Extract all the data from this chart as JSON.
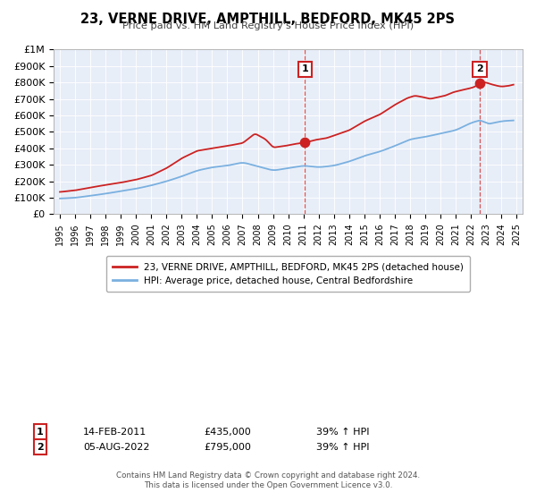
{
  "title": "23, VERNE DRIVE, AMPTHILL, BEDFORD, MK45 2PS",
  "subtitle": "Price paid vs. HM Land Registry's House Price Index (HPI)",
  "plot_bg_color": "#e8eef8",
  "hpi_line_color": "#7ab0e0",
  "price_line_color": "#cc2222",
  "vline_color": "#cc2222",
  "ylim": [
    0,
    1000000
  ],
  "xlim_start": 1994.6,
  "xlim_end": 2025.4,
  "yticks": [
    0,
    100000,
    200000,
    300000,
    400000,
    500000,
    600000,
    700000,
    800000,
    900000,
    1000000
  ],
  "ytick_labels": [
    "£0",
    "£100K",
    "£200K",
    "£300K",
    "£400K",
    "£500K",
    "£600K",
    "£700K",
    "£800K",
    "£900K",
    "£1M"
  ],
  "xtick_years": [
    1995,
    1996,
    1997,
    1998,
    1999,
    2000,
    2001,
    2002,
    2003,
    2004,
    2005,
    2006,
    2007,
    2008,
    2009,
    2010,
    2011,
    2012,
    2013,
    2014,
    2015,
    2016,
    2017,
    2018,
    2019,
    2020,
    2021,
    2022,
    2023,
    2024,
    2025
  ],
  "ann1_x": 2011.1,
  "ann1_y": 435000,
  "ann2_x": 2022.59,
  "ann2_y": 795000,
  "ann1_label": "1",
  "ann2_label": "2",
  "ann1_date": "14-FEB-2011",
  "ann1_price": "£435,000",
  "ann1_hpi": "39% ↑ HPI",
  "ann2_date": "05-AUG-2022",
  "ann2_price": "£795,000",
  "ann2_hpi": "39% ↑ HPI",
  "legend_label1": "23, VERNE DRIVE, AMPTHILL, BEDFORD, MK45 2PS (detached house)",
  "legend_label2": "HPI: Average price, detached house, Central Bedfordshire",
  "footer1": "Contains HM Land Registry data © Crown copyright and database right 2024.",
  "footer2": "This data is licensed under the Open Government Licence v3.0.",
  "hpi_keypoints_x": [
    1995.0,
    1996.0,
    1997.0,
    1998.0,
    1999.0,
    2000.0,
    2001.0,
    2002.0,
    2003.0,
    2004.0,
    2005.0,
    2006.0,
    2007.0,
    2008.0,
    2009.0,
    2010.0,
    2011.0,
    2012.0,
    2013.0,
    2014.0,
    2015.0,
    2016.0,
    2017.0,
    2018.0,
    2019.0,
    2020.0,
    2021.0,
    2022.0,
    2022.75,
    2023.0,
    2023.5,
    2024.0,
    2024.8
  ],
  "hpi_keypoints_y": [
    95000,
    100000,
    112000,
    125000,
    140000,
    155000,
    175000,
    200000,
    230000,
    265000,
    285000,
    295000,
    315000,
    290000,
    265000,
    280000,
    295000,
    285000,
    295000,
    320000,
    355000,
    380000,
    415000,
    455000,
    470000,
    490000,
    510000,
    555000,
    575000,
    545000,
    555000,
    565000,
    570000
  ],
  "price_keypoints_x": [
    1995.0,
    1996.0,
    1997.0,
    1998.0,
    1999.0,
    2000.0,
    2001.0,
    2002.0,
    2003.0,
    2004.0,
    2005.0,
    2006.0,
    2007.0,
    2007.8,
    2008.5,
    2009.0,
    2009.8,
    2010.3,
    2011.1,
    2011.8,
    2012.5,
    2013.0,
    2014.0,
    2015.0,
    2016.0,
    2017.0,
    2017.8,
    2018.3,
    2018.8,
    2019.3,
    2019.8,
    2020.3,
    2020.8,
    2021.3,
    2021.8,
    2022.2,
    2022.59,
    2022.9,
    2023.3,
    2023.7,
    2024.0,
    2024.5,
    2024.8
  ],
  "price_keypoints_y": [
    135000,
    145000,
    162000,
    178000,
    192000,
    210000,
    235000,
    280000,
    340000,
    385000,
    400000,
    415000,
    432000,
    490000,
    455000,
    405000,
    415000,
    425000,
    435000,
    452000,
    462000,
    478000,
    510000,
    565000,
    605000,
    665000,
    705000,
    720000,
    712000,
    700000,
    710000,
    720000,
    740000,
    752000,
    762000,
    772000,
    795000,
    802000,
    790000,
    780000,
    775000,
    780000,
    788000
  ]
}
